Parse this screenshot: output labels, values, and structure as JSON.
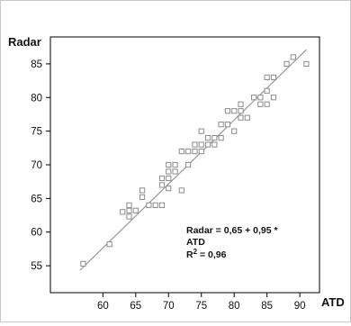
{
  "chart_data": {
    "type": "scatter",
    "title": "",
    "xlabel": "ATD",
    "ylabel": "Radar",
    "xlim": [
      52,
      93
    ],
    "ylim": [
      51,
      89
    ],
    "xticks": [
      60,
      65,
      70,
      75,
      80,
      85,
      90
    ],
    "yticks": [
      55,
      60,
      65,
      70,
      75,
      80,
      85
    ],
    "grid": false,
    "marker": "hollow-square",
    "marker_color": "#8c8c8c",
    "line_color": "#9a9a9a",
    "fit_line": {
      "intercept": 0.65,
      "slope": 0.95,
      "x_range": [
        56.5,
        91
      ]
    },
    "annotation": {
      "line1": "Radar = 0,65 + 0,95 *",
      "line2": "ATD",
      "r2_prefix": "R",
      "r2_sup": "2",
      "r2_value": " = 0,96"
    },
    "points": [
      {
        "x": 57,
        "y": 55.3
      },
      {
        "x": 61,
        "y": 58.2
      },
      {
        "x": 63,
        "y": 63
      },
      {
        "x": 64,
        "y": 62.3
      },
      {
        "x": 64,
        "y": 63.2
      },
      {
        "x": 64,
        "y": 64
      },
      {
        "x": 65,
        "y": 63.2
      },
      {
        "x": 66,
        "y": 65.2
      },
      {
        "x": 66,
        "y": 66.2
      },
      {
        "x": 67,
        "y": 64
      },
      {
        "x": 68,
        "y": 64
      },
      {
        "x": 69,
        "y": 64
      },
      {
        "x": 69,
        "y": 67
      },
      {
        "x": 69,
        "y": 68
      },
      {
        "x": 70,
        "y": 66.5
      },
      {
        "x": 70,
        "y": 68
      },
      {
        "x": 70,
        "y": 69
      },
      {
        "x": 70,
        "y": 70
      },
      {
        "x": 71,
        "y": 69
      },
      {
        "x": 71,
        "y": 70
      },
      {
        "x": 72,
        "y": 66.2
      },
      {
        "x": 72,
        "y": 72
      },
      {
        "x": 73,
        "y": 70
      },
      {
        "x": 73,
        "y": 72
      },
      {
        "x": 74,
        "y": 72
      },
      {
        "x": 74,
        "y": 73
      },
      {
        "x": 75,
        "y": 72
      },
      {
        "x": 75,
        "y": 73
      },
      {
        "x": 75,
        "y": 75
      },
      {
        "x": 76,
        "y": 73
      },
      {
        "x": 76,
        "y": 74
      },
      {
        "x": 77,
        "y": 73
      },
      {
        "x": 77,
        "y": 74
      },
      {
        "x": 78,
        "y": 74
      },
      {
        "x": 78,
        "y": 76
      },
      {
        "x": 79,
        "y": 76
      },
      {
        "x": 79,
        "y": 78
      },
      {
        "x": 80,
        "y": 75
      },
      {
        "x": 80,
        "y": 78
      },
      {
        "x": 81,
        "y": 77
      },
      {
        "x": 81,
        "y": 78
      },
      {
        "x": 81,
        "y": 79
      },
      {
        "x": 82,
        "y": 77
      },
      {
        "x": 83,
        "y": 80
      },
      {
        "x": 84,
        "y": 79
      },
      {
        "x": 84,
        "y": 80
      },
      {
        "x": 85,
        "y": 79
      },
      {
        "x": 85,
        "y": 81
      },
      {
        "x": 85,
        "y": 83
      },
      {
        "x": 86,
        "y": 80
      },
      {
        "x": 86,
        "y": 83
      },
      {
        "x": 88,
        "y": 85
      },
      {
        "x": 89,
        "y": 86
      },
      {
        "x": 91,
        "y": 85
      }
    ]
  }
}
